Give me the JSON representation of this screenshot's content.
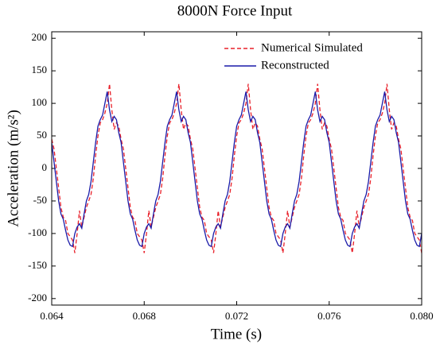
{
  "chart_data": {
    "type": "line",
    "title": "8000N Force Input",
    "xlabel": "Time (s)",
    "ylabel": "Acceleration (m/s²)",
    "x": [
      0.064,
      0.0641,
      0.0642,
      0.0643,
      0.0644,
      0.0645,
      0.0646,
      0.0647,
      0.0648,
      0.0649,
      0.065,
      0.0651,
      0.0652,
      0.0653,
      0.0654,
      0.0655,
      0.0656,
      0.0657,
      0.0658,
      0.0659,
      0.066,
      0.0661,
      0.0662,
      0.0663,
      0.0664,
      0.0665,
      0.0666,
      0.0667,
      0.0668,
      0.0669,
      0.067,
      0.0671,
      0.0672,
      0.0673,
      0.0674,
      0.0675,
      0.0676,
      0.0677,
      0.0678,
      0.0679,
      0.068,
      0.0681,
      0.0682,
      0.0683,
      0.0684,
      0.0685,
      0.0686,
      0.0687,
      0.0688,
      0.0689,
      0.069,
      0.0691,
      0.0692,
      0.0693,
      0.0694,
      0.0695,
      0.0696,
      0.0697,
      0.0698,
      0.0699,
      0.07,
      0.0701,
      0.0702,
      0.0703,
      0.0704,
      0.0705,
      0.0706,
      0.0707,
      0.0708,
      0.0709,
      0.071,
      0.0711,
      0.0712,
      0.0713,
      0.0714,
      0.0715,
      0.0716,
      0.0717,
      0.0718,
      0.0719,
      0.072,
      0.0721,
      0.0722,
      0.0723,
      0.0724,
      0.0725,
      0.0726,
      0.0727,
      0.0728,
      0.0729,
      0.073,
      0.0731,
      0.0732,
      0.0733,
      0.0734,
      0.0735,
      0.0736,
      0.0737,
      0.0738,
      0.0739,
      0.074,
      0.0741,
      0.0742,
      0.0743,
      0.0744,
      0.0745,
      0.0746,
      0.0747,
      0.0748,
      0.0749,
      0.075,
      0.0751,
      0.0752,
      0.0753,
      0.0754,
      0.0755,
      0.0756,
      0.0757,
      0.0758,
      0.0759,
      0.076,
      0.0761,
      0.0762,
      0.0763,
      0.0764,
      0.0765,
      0.0766,
      0.0767,
      0.0768,
      0.0769,
      0.077,
      0.0771,
      0.0772,
      0.0773,
      0.0774,
      0.0775,
      0.0776,
      0.0777,
      0.0778,
      0.0779,
      0.078,
      0.0781,
      0.0782,
      0.0783,
      0.0784,
      0.0785,
      0.0786,
      0.0787,
      0.0788,
      0.0789,
      0.079,
      0.0791,
      0.0792,
      0.0793,
      0.0794,
      0.0795,
      0.0796,
      0.0797,
      0.0798,
      0.0799,
      0.08
    ],
    "series": [
      {
        "name": "Numerical Simulated",
        "color": "#e8202a",
        "dash": true,
        "values": [
          45,
          30,
          0,
          -30,
          -60,
          -75,
          -80,
          -100,
          -105,
          -110,
          -130,
          -100,
          -65,
          -90,
          -75,
          -60,
          -50,
          -40,
          -15,
          20,
          50,
          70,
          75,
          85,
          100,
          130,
          90,
          60,
          70,
          65,
          45,
          30,
          0,
          -30,
          -60,
          -75,
          -80,
          -100,
          -105,
          -110,
          -130,
          -100,
          -65,
          -90,
          -75,
          -60,
          -50,
          -40,
          -15,
          20,
          50,
          70,
          75,
          85,
          100,
          130,
          90,
          60,
          70,
          65,
          45,
          30,
          0,
          -30,
          -60,
          -75,
          -80,
          -100,
          -105,
          -110,
          -130,
          -100,
          -65,
          -90,
          -75,
          -60,
          -50,
          -40,
          -15,
          20,
          50,
          70,
          75,
          85,
          100,
          130,
          90,
          60,
          70,
          65,
          45,
          30,
          0,
          -30,
          -60,
          -75,
          -80,
          -100,
          -105,
          -110,
          -130,
          -100,
          -65,
          -90,
          -75,
          -60,
          -50,
          -40,
          -15,
          20,
          50,
          70,
          75,
          85,
          100,
          130,
          90,
          60,
          70,
          65,
          45,
          30,
          0,
          -30,
          -60,
          -75,
          -80,
          -100,
          -105,
          -110,
          -130,
          -100,
          -65,
          -90,
          -75,
          -60,
          -50,
          -40,
          -15,
          20,
          50,
          70,
          75,
          85,
          100,
          130,
          90,
          60,
          70,
          65,
          45,
          30,
          0,
          -30,
          -60,
          -75,
          -80,
          -100,
          -105,
          -110,
          -130
        ]
      },
      {
        "name": "Reconstructed",
        "color": "#1a1aa8",
        "dash": false,
        "values": [
          40,
          10,
          -20,
          -50,
          -70,
          -78,
          -95,
          -110,
          -118,
          -120,
          -100,
          -90,
          -85,
          -92,
          -70,
          -50,
          -40,
          -20,
          10,
          40,
          65,
          75,
          82,
          100,
          118,
          90,
          72,
          80,
          75,
          55,
          40,
          10,
          -20,
          -50,
          -70,
          -78,
          -95,
          -110,
          -118,
          -120,
          -100,
          -90,
          -85,
          -92,
          -70,
          -50,
          -40,
          -20,
          10,
          40,
          65,
          75,
          82,
          100,
          118,
          90,
          72,
          80,
          75,
          55,
          40,
          10,
          -20,
          -50,
          -70,
          -78,
          -95,
          -110,
          -118,
          -120,
          -100,
          -90,
          -85,
          -92,
          -70,
          -50,
          -40,
          -20,
          10,
          40,
          65,
          75,
          82,
          100,
          118,
          90,
          72,
          80,
          75,
          55,
          40,
          10,
          -20,
          -50,
          -70,
          -78,
          -95,
          -110,
          -118,
          -120,
          -100,
          -90,
          -85,
          -92,
          -70,
          -50,
          -40,
          -20,
          10,
          40,
          65,
          75,
          82,
          100,
          118,
          90,
          72,
          80,
          75,
          55,
          40,
          10,
          -20,
          -50,
          -70,
          -78,
          -95,
          -110,
          -118,
          -120,
          -100,
          -90,
          -85,
          -92,
          -70,
          -50,
          -40,
          -20,
          10,
          40,
          65,
          75,
          82,
          100,
          118,
          90,
          72,
          80,
          75,
          55,
          40,
          10,
          -20,
          -50,
          -70,
          -78,
          -95,
          -110,
          -118,
          -120,
          -100
        ]
      }
    ],
    "xlim": [
      0.064,
      0.08
    ],
    "xticks": [
      0.064,
      0.068,
      0.072,
      0.076,
      {
        "value": 0.08,
        "label": "0.080"
      }
    ],
    "ylim": [
      -210,
      210
    ],
    "yticks": [
      -200,
      -150,
      -100,
      -50,
      0,
      50,
      100,
      150,
      200
    ],
    "legend": "upper right"
  }
}
